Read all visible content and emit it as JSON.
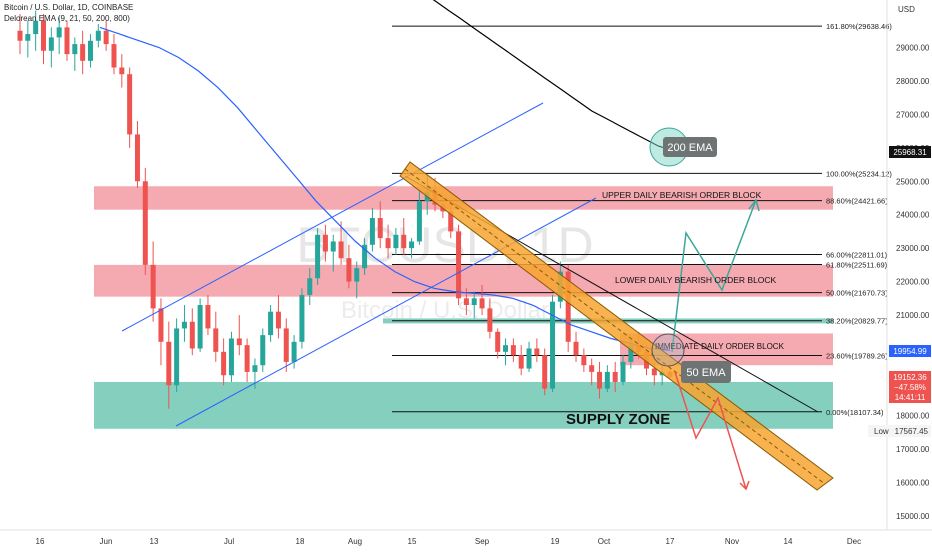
{
  "header": {
    "symbol_line": "Bitcoin / U.S. Dollar, 1D, COINBASE",
    "indicator_line": "Delorean EMA (9, 21, 50, 200, 800)"
  },
  "axis": {
    "currency": "USD",
    "y_ticks": [
      "29000.00",
      "28000.00",
      "27000.00",
      "26000.00",
      "25000.00",
      "24000.00",
      "23000.00",
      "22000.00",
      "21000.00",
      "20000.00",
      "19000.00",
      "18000.00",
      "17000.00",
      "16000.00",
      "15000.00"
    ],
    "x_ticks": [
      "16",
      "Jun",
      "13",
      "Jul",
      "18",
      "Aug",
      "15",
      "Sep",
      "19",
      "Oct",
      "17",
      "Nov",
      "14",
      "Dec"
    ]
  },
  "price_labels": {
    "ema200_value": "25968.31",
    "ema50_value": "19954.99",
    "last_price": "19152.36",
    "last_change": "−47.58%",
    "countdown": "14:41:11",
    "low_label": "Low",
    "low_value": "17567.45"
  },
  "watermark": {
    "main": "BTCUSD, 1D",
    "sub": "Bitcoin / U.S. Dollar"
  },
  "fib_levels": [
    {
      "label": "161.80%(29638.46)",
      "value": 29638.46
    },
    {
      "label": "100.00%(25234.12)",
      "value": 25234.12
    },
    {
      "label": "88.60%(24421.66)",
      "value": 24421.66
    },
    {
      "label": "66.00%(22811.01)",
      "value": 22811.01
    },
    {
      "label": "61.80%(22511.69)",
      "value": 22511.69
    },
    {
      "label": "50.00%(21670.73)",
      "value": 21670.73
    },
    {
      "label": "38.20%(20829.77)",
      "value": 20829.77
    },
    {
      "label": "23.60%(19789.26)",
      "value": 19789.26
    },
    {
      "label": "0.00%(18107.34)",
      "value": 18107.34
    }
  ],
  "zones": [
    {
      "label": "UPPER DAILY BEARISH ORDER BLOCK",
      "top": 24850,
      "bottom": 24150,
      "color": "#f28c96"
    },
    {
      "label": "LOWER DAILY BEARISH ORDER BLOCK",
      "top": 22500,
      "bottom": 21550,
      "color": "#f28c96"
    },
    {
      "label": "",
      "top": 20900,
      "bottom": 20750,
      "color": "#5cbfa8"
    },
    {
      "label": "IMMEDIATE DAILY ORDER BLOCK",
      "top": 20450,
      "bottom": 19500,
      "color": "#f28c96"
    },
    {
      "label": "SUPPLY ZONE",
      "top": 19000,
      "bottom": 17600,
      "color": "#5cbfa8"
    }
  ],
  "annotations": {
    "ema200_tag": "200 EMA",
    "ema50_tag": "50 EMA"
  },
  "colors": {
    "up_candle": "#26a69a",
    "down_candle": "#ef5350",
    "ema50": "#2962ff",
    "ema200": "#000000",
    "trendline": "#f7a530",
    "bull_path": "#3aa89a",
    "bear_path": "#ef5350"
  },
  "chart_data": {
    "type": "candlestick",
    "title": "Bitcoin / U.S. Dollar, 1D, COINBASE",
    "xlabel": "",
    "ylabel": "USD",
    "ylim": [
      14700,
      29900
    ],
    "grid": false,
    "series": [
      {
        "name": "BTCUSD",
        "points": [
          [
            29500,
            30000,
            28800,
            29200
          ],
          [
            29200,
            29800,
            28700,
            29400
          ],
          [
            29400,
            30100,
            28900,
            29800
          ],
          [
            29800,
            30000,
            28500,
            28900
          ],
          [
            28900,
            29600,
            28400,
            29300
          ],
          [
            29300,
            29900,
            28800,
            29600
          ],
          [
            29600,
            29800,
            28600,
            28800
          ],
          [
            28800,
            29300,
            28300,
            29100
          ],
          [
            29100,
            29500,
            28200,
            28600
          ],
          [
            28600,
            29400,
            28400,
            29200
          ],
          [
            29200,
            29700,
            29000,
            29500
          ],
          [
            29500,
            29800,
            28900,
            29100
          ],
          [
            29100,
            29400,
            28200,
            28400
          ],
          [
            28400,
            28800,
            27800,
            28200
          ],
          [
            28200,
            28400,
            26000,
            26400
          ],
          [
            26400,
            26800,
            24800,
            25000
          ],
          [
            25000,
            25400,
            22200,
            22500
          ],
          [
            22500,
            23200,
            20800,
            21200
          ],
          [
            21200,
            21500,
            19500,
            20200
          ],
          [
            20200,
            20800,
            18200,
            18900
          ],
          [
            18900,
            20900,
            18700,
            20600
          ],
          [
            20600,
            21300,
            20200,
            20800
          ],
          [
            20800,
            21200,
            19800,
            20000
          ],
          [
            20000,
            21500,
            19900,
            21300
          ],
          [
            21300,
            21600,
            20400,
            20600
          ],
          [
            20600,
            21100,
            19600,
            19900
          ],
          [
            19900,
            20300,
            18900,
            19200
          ],
          [
            19200,
            20500,
            19000,
            20300
          ],
          [
            20300,
            21000,
            19800,
            20100
          ],
          [
            20100,
            20300,
            19000,
            19300
          ],
          [
            19300,
            19700,
            18800,
            19500
          ],
          [
            19500,
            20600,
            19300,
            20400
          ],
          [
            20400,
            21300,
            20200,
            21100
          ],
          [
            21100,
            21600,
            20300,
            20600
          ],
          [
            20600,
            20900,
            19300,
            19600
          ],
          [
            19600,
            20400,
            19400,
            20200
          ],
          [
            20200,
            21800,
            20000,
            21600
          ],
          [
            21600,
            22400,
            21300,
            22100
          ],
          [
            22100,
            23600,
            21900,
            23400
          ],
          [
            23400,
            23700,
            22600,
            22900
          ],
          [
            22900,
            23400,
            22300,
            23200
          ],
          [
            23200,
            23800,
            22500,
            22700
          ],
          [
            22700,
            23100,
            21800,
            22000
          ],
          [
            22000,
            22600,
            21500,
            22400
          ],
          [
            22400,
            23300,
            22200,
            23100
          ],
          [
            23100,
            24200,
            22900,
            23900
          ],
          [
            23900,
            24400,
            23000,
            23300
          ],
          [
            23300,
            23700,
            22700,
            23000
          ],
          [
            23000,
            23600,
            22800,
            23400
          ],
          [
            23400,
            23900,
            22800,
            23000
          ],
          [
            23000,
            23300,
            22700,
            23200
          ],
          [
            23200,
            24700,
            23100,
            24400
          ],
          [
            24400,
            25200,
            24000,
            24700
          ],
          [
            24700,
            25100,
            24100,
            24300
          ],
          [
            24300,
            24600,
            23900,
            24100
          ],
          [
            24100,
            24300,
            23300,
            23500
          ],
          [
            23500,
            23700,
            21300,
            21500
          ],
          [
            21500,
            21800,
            21000,
            21300
          ],
          [
            21300,
            21700,
            20900,
            21500
          ],
          [
            21500,
            21900,
            21000,
            21200
          ],
          [
            21200,
            21500,
            20300,
            20500
          ],
          [
            20500,
            20600,
            19700,
            19900
          ],
          [
            19900,
            20300,
            19500,
            20100
          ],
          [
            20100,
            20300,
            19600,
            19800
          ],
          [
            19800,
            20100,
            19200,
            19400
          ],
          [
            19400,
            20200,
            19300,
            20000
          ],
          [
            20000,
            20300,
            19600,
            19800
          ],
          [
            19800,
            20000,
            18600,
            18800
          ],
          [
            18800,
            21600,
            18700,
            21400
          ],
          [
            21400,
            22600,
            21200,
            22300
          ],
          [
            22300,
            22500,
            19900,
            20200
          ],
          [
            20200,
            20500,
            19600,
            19800
          ],
          [
            19800,
            20000,
            19300,
            19500
          ],
          [
            19500,
            19700,
            18900,
            19300
          ],
          [
            19300,
            19600,
            18500,
            18800
          ],
          [
            18800,
            19500,
            18700,
            19300
          ],
          [
            19300,
            19600,
            18700,
            19000
          ],
          [
            19000,
            19800,
            18900,
            19600
          ],
          [
            19600,
            20300,
            19400,
            20100
          ],
          [
            20100,
            20500,
            19700,
            19900
          ],
          [
            19900,
            20100,
            19200,
            19400
          ],
          [
            19400,
            19600,
            18900,
            19200
          ],
          [
            19200,
            19500,
            18900,
            19300
          ],
          [
            19300,
            19600,
            19100,
            19150
          ]
        ]
      },
      {
        "name": "EMA 50",
        "values": [
          29600,
          29400,
          29200,
          29000,
          28700,
          28300,
          27800,
          27200,
          26500,
          25800,
          25100,
          24400,
          23800,
          23200,
          22700,
          22300,
          22000,
          21800,
          21700,
          21650,
          21600,
          21500,
          21300,
          21000,
          20700,
          20500,
          20300,
          20150,
          20000,
          19950
        ]
      },
      {
        "name": "EMA 200",
        "values": [
          30500,
          30300,
          30100,
          29900,
          29700,
          29500,
          29300,
          29100,
          28900,
          28700,
          28500,
          28300,
          28100,
          27900,
          27700,
          27500,
          27300,
          27100,
          26950,
          26800,
          26650,
          26500,
          26350,
          26200,
          26050,
          25968
        ]
      }
    ]
  }
}
